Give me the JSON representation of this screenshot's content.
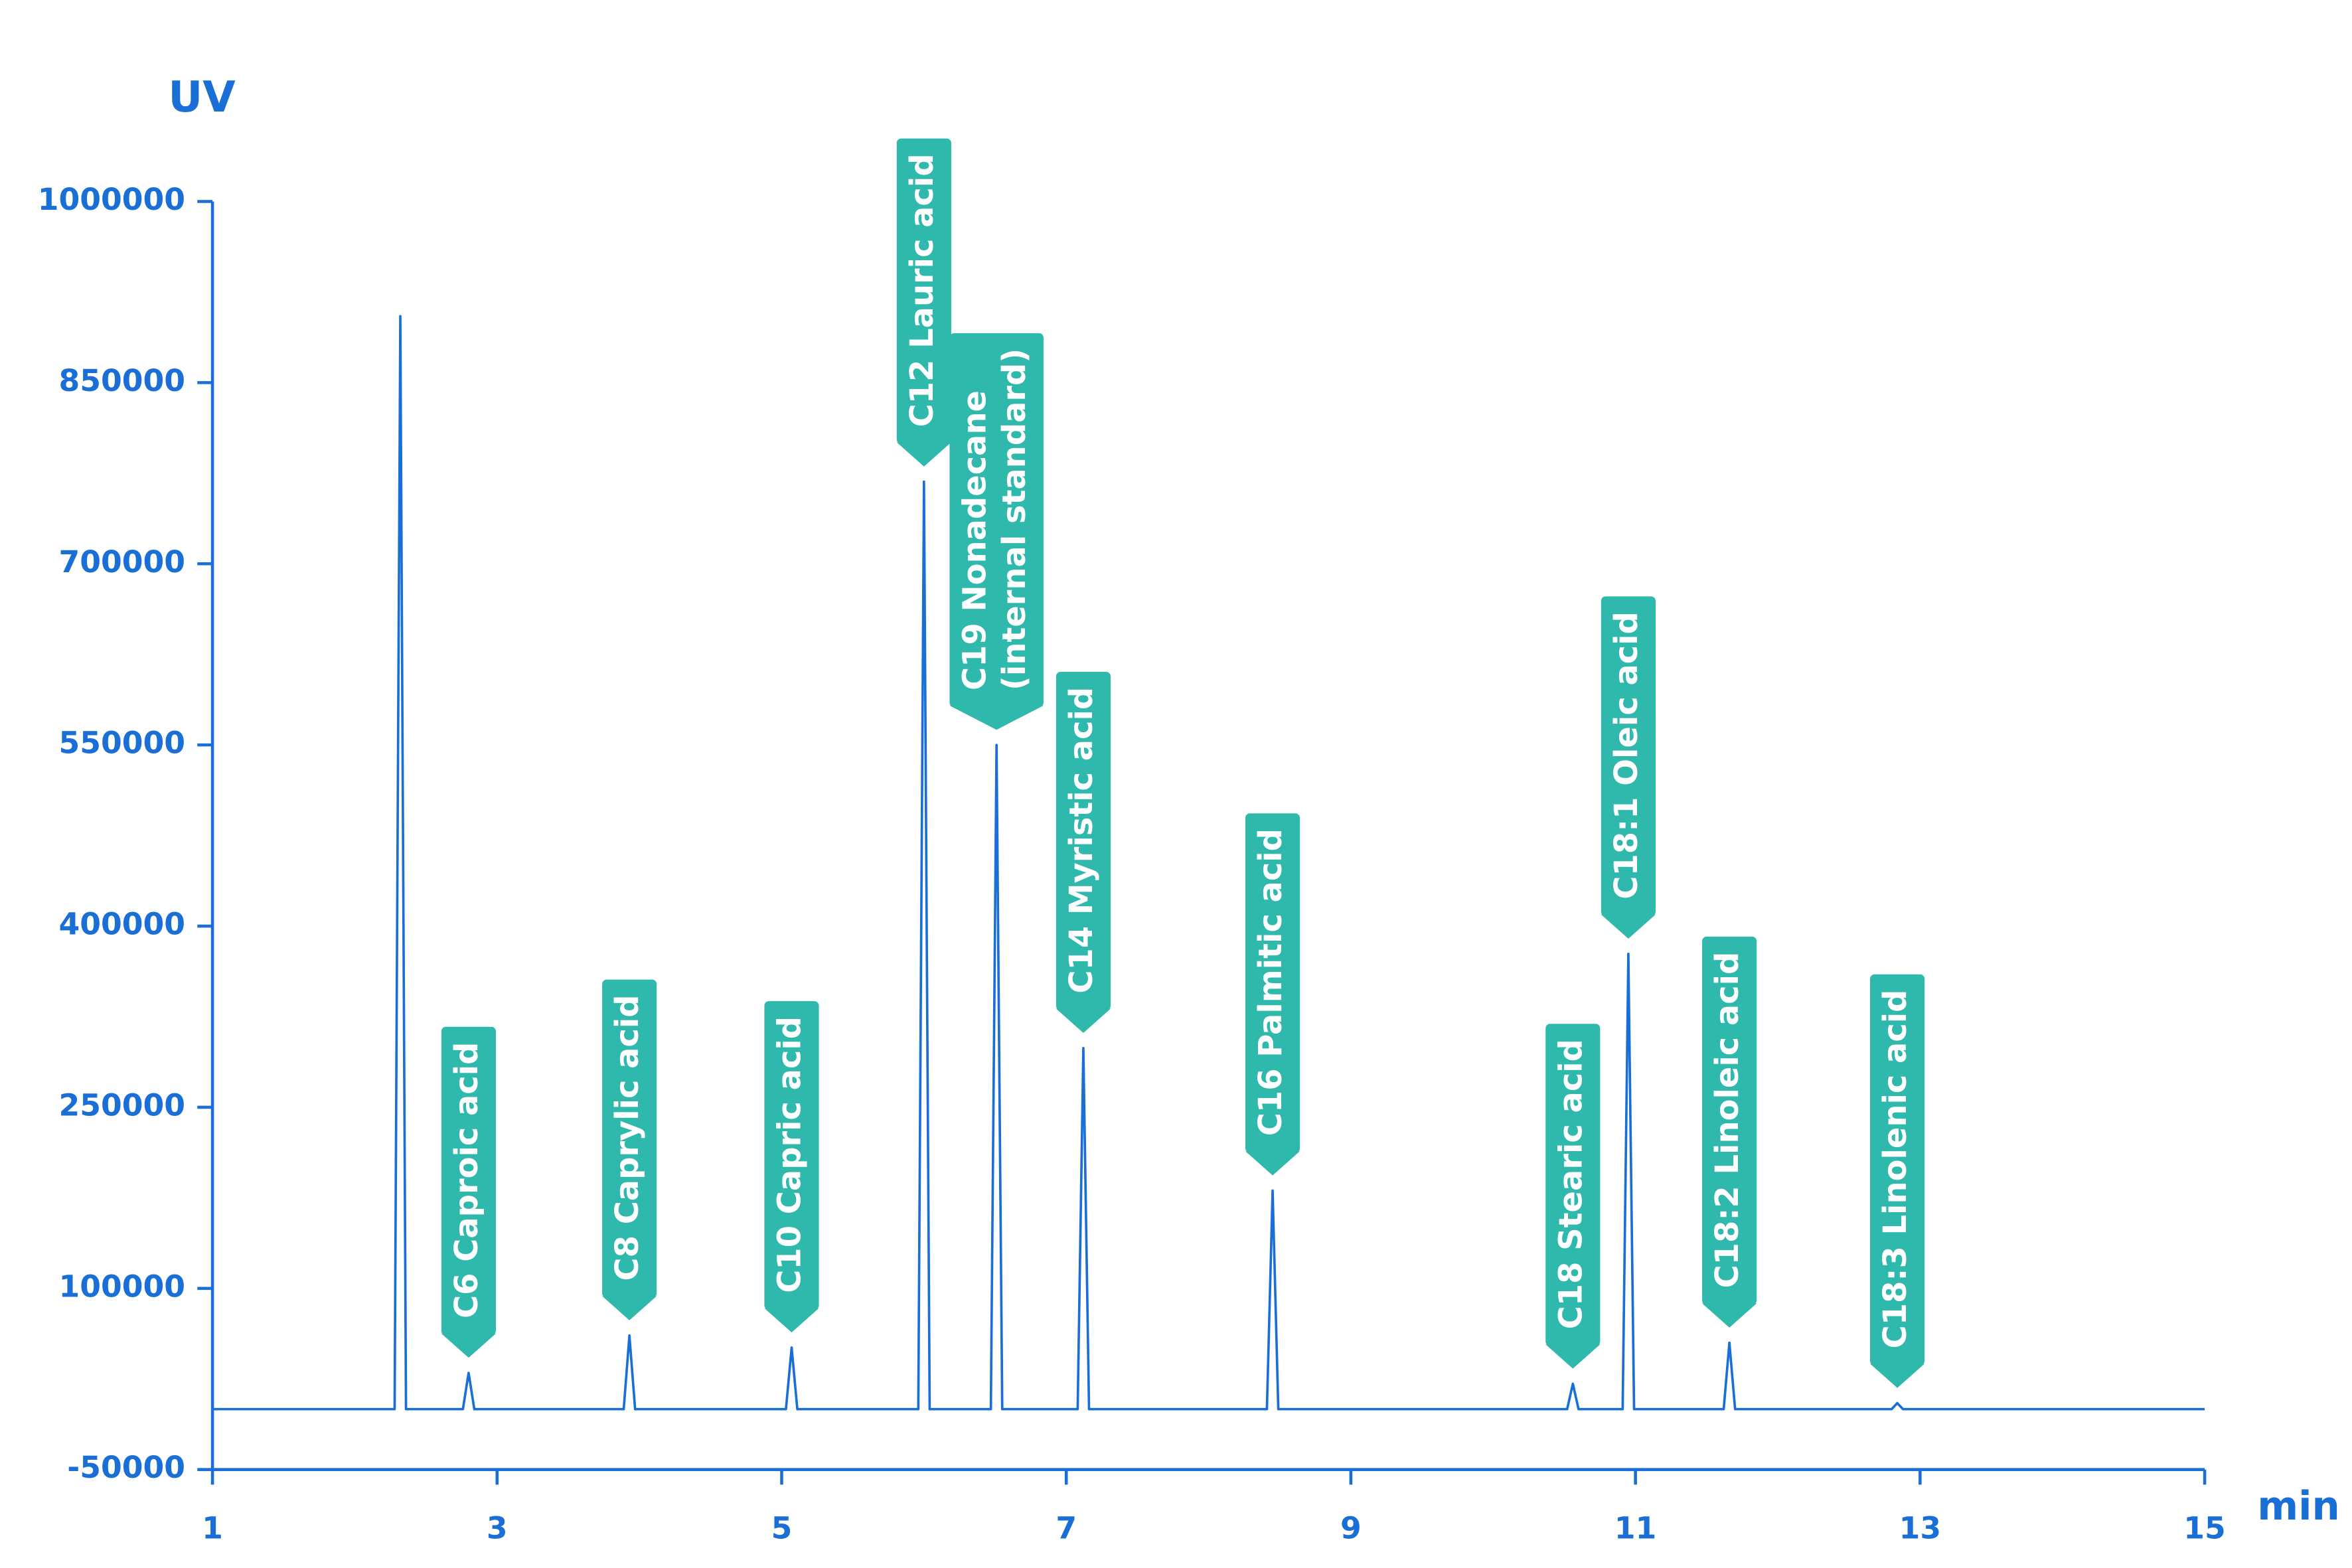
{
  "chart_data": {
    "type": "line",
    "x_label": "min",
    "y_label": "UV",
    "color": "#1a6fd6",
    "axis_color": "#1a6fd6",
    "label_color": "#2fb8ac",
    "xlim": [
      1,
      15
    ],
    "xticks": [
      1,
      3,
      5,
      7,
      9,
      11,
      13,
      15
    ],
    "ylim": [
      -50000,
      1000000
    ],
    "yticks": [
      -50000,
      100000,
      250000,
      400000,
      550000,
      700000,
      850000,
      1000000
    ],
    "x": [
      1,
      2.28,
      2.32,
      2.36,
      2.76,
      2.8,
      2.84,
      3.89,
      3.93,
      3.97,
      5.03,
      5.07,
      5.11,
      5.96,
      6.0,
      6.04,
      6.47,
      6.51,
      6.55,
      7.08,
      7.12,
      7.16,
      8.41,
      8.45,
      8.49,
      10.52,
      10.56,
      10.6,
      10.91,
      10.95,
      10.99,
      11.62,
      11.66,
      11.7,
      12.8,
      12.84,
      12.88,
      15
    ],
    "values": [
      0,
      0,
      905000,
      0,
      0,
      30000,
      0,
      0,
      61000,
      0,
      0,
      51000,
      0,
      0,
      768000,
      0,
      0,
      550000,
      0,
      0,
      299000,
      0,
      0,
      181000,
      0,
      0,
      21000,
      0,
      0,
      377000,
      0,
      0,
      55000,
      0,
      0,
      5000,
      0,
      0
    ],
    "annotations": [
      {
        "text": [
          "C6 Caproic acid"
        ],
        "x": 2.8,
        "y": 30000
      },
      {
        "text": [
          "C8 Caprylic acid"
        ],
        "x": 3.93,
        "y": 61000
      },
      {
        "text": [
          "C10 Capric acid"
        ],
        "x": 5.07,
        "y": 51000
      },
      {
        "text": [
          "C12 Lauric acid"
        ],
        "x": 6.0,
        "y": 768000
      },
      {
        "text": [
          "C19  Nonadecane",
          "(internal standard)"
        ],
        "x": 6.51,
        "y": 550000
      },
      {
        "text": [
          "C14 Myristic acid"
        ],
        "x": 7.12,
        "y": 299000
      },
      {
        "text": [
          "C16 Palmitic acid"
        ],
        "x": 8.45,
        "y": 181000
      },
      {
        "text": [
          "C18 Stearic acid"
        ],
        "x": 10.56,
        "y": 21000
      },
      {
        "text": [
          "C18:1 Oleic acid"
        ],
        "x": 10.95,
        "y": 377000
      },
      {
        "text": [
          "C18:2 Linoleic acid"
        ],
        "x": 11.66,
        "y": 55000
      },
      {
        "text": [
          "C18:3 Linolenic acid"
        ],
        "x": 12.84,
        "y": 5000
      }
    ]
  }
}
